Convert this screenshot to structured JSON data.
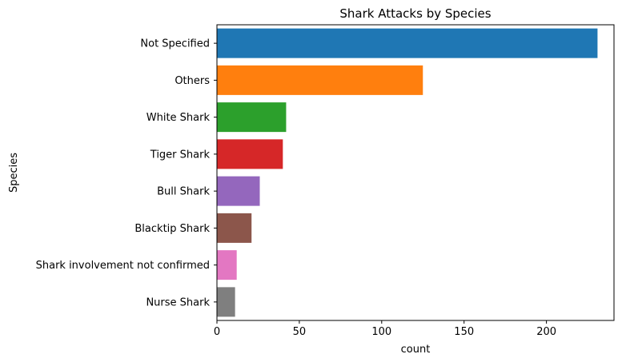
{
  "chart_data": {
    "type": "bar",
    "orientation": "horizontal",
    "title": "Shark Attacks by Species",
    "xlabel": "count",
    "ylabel": "Species",
    "categories": [
      "Not Specified",
      "Others",
      "White Shark",
      "Tiger Shark",
      "Bull Shark",
      "Blacktip Shark",
      "Shark involvement not confirmed",
      "Nurse Shark"
    ],
    "values": [
      231,
      125,
      42,
      40,
      26,
      21,
      12,
      11
    ],
    "colors": [
      "#1f77b4",
      "#ff7f0e",
      "#2ca02c",
      "#d62728",
      "#9467bd",
      "#8c564b",
      "#e377c2",
      "#7f7f7f"
    ],
    "xlim": [
      0,
      241
    ],
    "xticks": [
      0,
      50,
      100,
      150,
      200
    ],
    "xtick_labels": [
      "0",
      "50",
      "100",
      "150",
      "200"
    ],
    "grid": false,
    "legend": "none"
  }
}
